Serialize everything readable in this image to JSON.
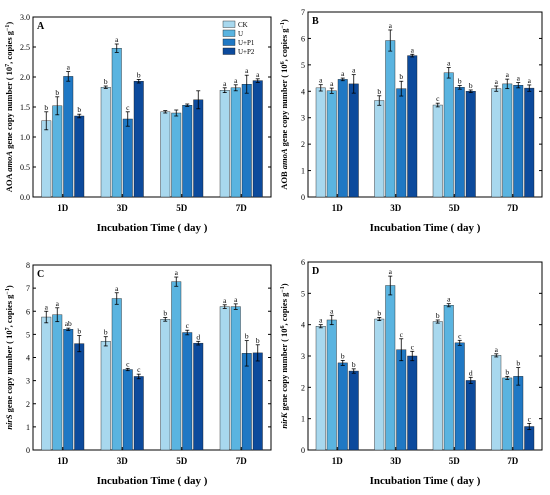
{
  "colors": {
    "CK": "#a8d8ee",
    "U": "#5ab4e0",
    "U+P1": "#1f78c4",
    "U+P2": "#0c4a9c"
  },
  "legend": [
    "CK",
    "U",
    "U+P1",
    "U+P2"
  ],
  "chart_data": [
    {
      "type": "bar",
      "panel": "A",
      "ylabel_parts": [
        "AOA ",
        "amoA",
        " gene copy number ( 10",
        "7",
        ", copies g",
        "−1",
        ")"
      ],
      "xlabel": "Incubation Time ( day )",
      "categories": [
        "1D",
        "3D",
        "5D",
        "7D"
      ],
      "ylim": [
        0,
        3.0
      ],
      "yticks": [
        0.0,
        0.5,
        1.0,
        1.5,
        2.0,
        2.5,
        3.0
      ],
      "ytick_labels": [
        "0.0",
        "0.5",
        "1.0",
        "1.5",
        "2.0",
        "2.5",
        "3.0"
      ],
      "legend_shown": true,
      "series": [
        {
          "name": "CK",
          "values": [
            1.27,
            1.83,
            1.42,
            1.78
          ],
          "errors": [
            0.15,
            0.02,
            0.02,
            0.04
          ],
          "letters": [
            "b",
            "b",
            "",
            "a"
          ]
        },
        {
          "name": "U",
          "values": [
            1.52,
            2.48,
            1.4,
            1.82
          ],
          "errors": [
            0.15,
            0.07,
            0.05,
            0.05
          ],
          "letters": [
            "b",
            "a",
            "",
            "a"
          ]
        },
        {
          "name": "U+P1",
          "values": [
            2.01,
            1.3,
            1.53,
            1.88
          ],
          "errors": [
            0.08,
            0.12,
            0.02,
            0.15
          ],
          "letters": [
            "a",
            "c",
            "",
            "a"
          ]
        },
        {
          "name": "U+P2",
          "values": [
            1.35,
            1.93,
            1.62,
            1.94
          ],
          "errors": [
            0.03,
            0.03,
            0.15,
            0.03
          ],
          "letters": [
            "b",
            "b",
            "",
            "a"
          ]
        }
      ]
    },
    {
      "type": "bar",
      "panel": "B",
      "ylabel_parts": [
        "AOB ",
        "amoA",
        " gene copy number ( 10",
        "6",
        ", copies g",
        "−1",
        ")"
      ],
      "xlabel": "Incubation Time ( day )",
      "categories": [
        "1D",
        "3D",
        "5D",
        "7D"
      ],
      "ylim": [
        0,
        7
      ],
      "yticks": [
        0,
        1,
        2,
        3,
        4,
        5,
        6,
        7
      ],
      "ytick_labels": [
        "0",
        "1",
        "2",
        "3",
        "4",
        "5",
        "6",
        "7"
      ],
      "legend_shown": false,
      "series": [
        {
          "name": "CK",
          "values": [
            4.13,
            3.65,
            3.48,
            4.1
          ],
          "errors": [
            0.12,
            0.18,
            0.07,
            0.1
          ],
          "letters": [
            "a",
            "b",
            "c",
            "a"
          ]
        },
        {
          "name": "U",
          "values": [
            4.02,
            5.92,
            4.7,
            4.28
          ],
          "errors": [
            0.1,
            0.4,
            0.2,
            0.18
          ],
          "letters": [
            "a",
            "a",
            "a",
            "a"
          ]
        },
        {
          "name": "U+P1",
          "values": [
            4.45,
            4.1,
            4.15,
            4.23
          ],
          "errors": [
            0.05,
            0.28,
            0.07,
            0.1
          ],
          "letters": [
            "a",
            "b",
            "b",
            "a"
          ]
        },
        {
          "name": "U+P2",
          "values": [
            4.28,
            5.35,
            4.0,
            4.12
          ],
          "errors": [
            0.35,
            0.05,
            0.05,
            0.12
          ],
          "letters": [
            "a",
            "a",
            "b",
            "a"
          ]
        }
      ]
    },
    {
      "type": "bar",
      "panel": "C",
      "ylabel_parts": [
        "",
        "nirS",
        " gene copy number ( 10",
        "7",
        ", copies g",
        "−1",
        ")"
      ],
      "xlabel": "Incubation Time ( day )",
      "categories": [
        "1D",
        "3D",
        "5D",
        "7D"
      ],
      "ylim": [
        0,
        8
      ],
      "yticks": [
        0,
        1,
        2,
        3,
        4,
        5,
        6,
        7,
        8
      ],
      "ytick_labels": [
        "0",
        "1",
        "2",
        "3",
        "4",
        "5",
        "6",
        "7",
        "8"
      ],
      "legend_shown": false,
      "series": [
        {
          "name": "CK",
          "values": [
            5.75,
            4.7,
            5.65,
            6.2
          ],
          "errors": [
            0.25,
            0.2,
            0.08,
            0.08
          ],
          "letters": [
            "a",
            "b",
            "b",
            "a"
          ]
        },
        {
          "name": "U",
          "values": [
            5.85,
            6.55,
            7.28,
            6.2
          ],
          "errors": [
            0.3,
            0.25,
            0.2,
            0.12
          ],
          "letters": [
            "a",
            "a",
            "a",
            "a"
          ]
        },
        {
          "name": "U+P1",
          "values": [
            5.22,
            3.48,
            5.08,
            4.18
          ],
          "errors": [
            0.05,
            0.05,
            0.1,
            0.55
          ],
          "letters": [
            "ab",
            "c",
            "c",
            "b"
          ]
        },
        {
          "name": "U+P2",
          "values": [
            4.6,
            3.18,
            4.62,
            4.2
          ],
          "errors": [
            0.35,
            0.1,
            0.08,
            0.35
          ],
          "letters": [
            "b",
            "c",
            "d",
            "b"
          ]
        }
      ]
    },
    {
      "type": "bar",
      "panel": "D",
      "ylabel_parts": [
        "",
        "nirK",
        " gene copy number ( 10",
        "6",
        ", copies g",
        "−1",
        ")"
      ],
      "xlabel": "Incubation Time ( day )",
      "categories": [
        "1D",
        "3D",
        "5D",
        "7D"
      ],
      "ylim": [
        0,
        6
      ],
      "yticks": [
        0,
        1,
        2,
        3,
        4,
        5,
        6
      ],
      "ytick_labels": [
        "0",
        "1",
        "2",
        "3",
        "4",
        "5",
        "6"
      ],
      "legend_shown": false,
      "series": [
        {
          "name": "CK",
          "values": [
            3.95,
            4.18,
            4.1,
            3.02
          ],
          "errors": [
            0.05,
            0.05,
            0.05,
            0.05
          ],
          "letters": [
            "a",
            "b",
            "b",
            "a"
          ]
        },
        {
          "name": "U",
          "values": [
            4.15,
            5.25,
            4.62,
            2.3
          ],
          "errors": [
            0.15,
            0.3,
            0.05,
            0.05
          ],
          "letters": [
            "a",
            "a",
            "a",
            "b"
          ]
        },
        {
          "name": "U+P1",
          "values": [
            2.78,
            3.2,
            3.42,
            2.35
          ],
          "errors": [
            0.08,
            0.35,
            0.08,
            0.28
          ],
          "letters": [
            "b",
            "c",
            "c",
            "b"
          ]
        },
        {
          "name": "U+P2",
          "values": [
            2.52,
            3.0,
            2.22,
            0.75
          ],
          "errors": [
            0.07,
            0.15,
            0.1,
            0.1
          ],
          "letters": [
            "b",
            "c",
            "d",
            "c"
          ]
        }
      ]
    }
  ]
}
